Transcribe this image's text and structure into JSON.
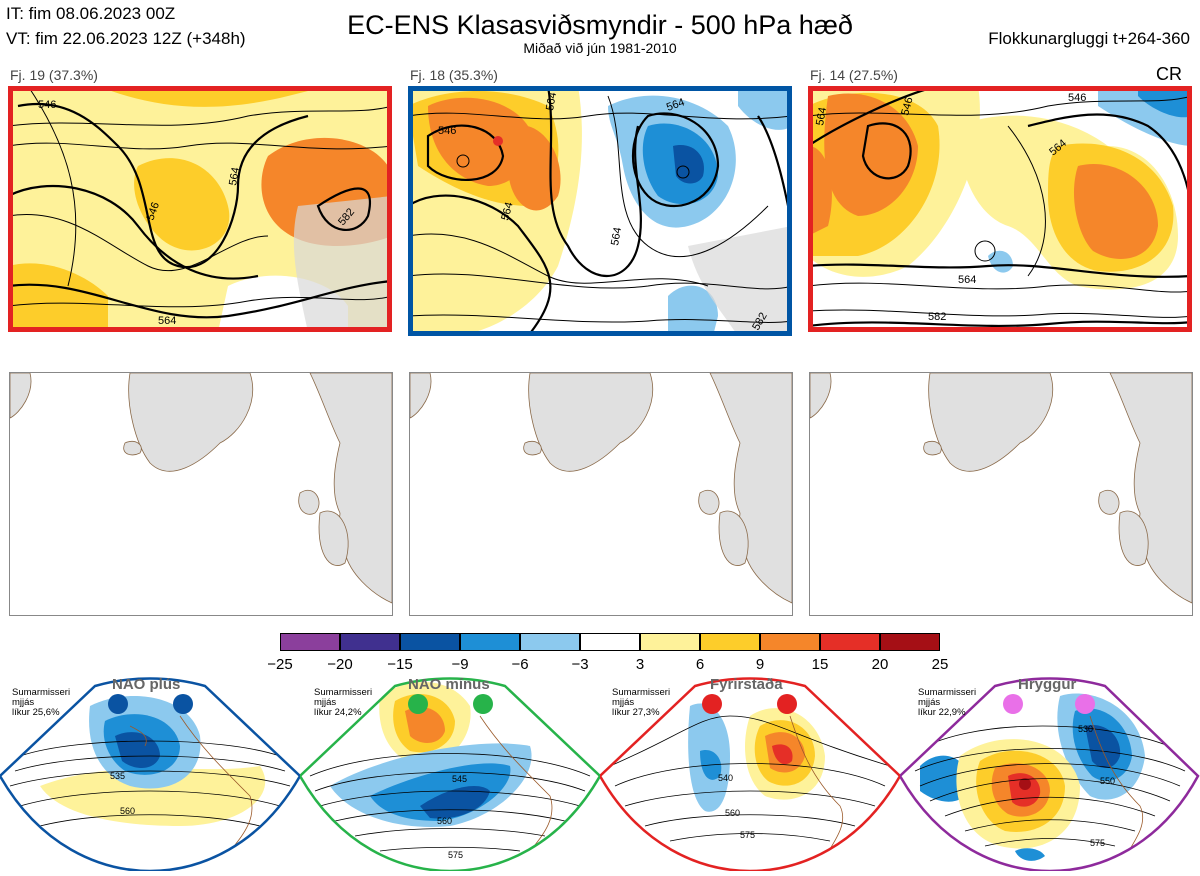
{
  "header": {
    "it": "IT: fim 08.06.2023 00Z",
    "vt": "VT: fim 22.06.2023 12Z  (+348h)",
    "title": "EC-ENS Klasasviðsmyndir - 500 hPa hæð",
    "subtitle": "Miðað við jún 1981-2010",
    "window": "Flokkunargluggi t+264-360",
    "cr": "CR"
  },
  "clusters": [
    {
      "label": "Fj. 19 (37.3%)",
      "frame_color": "#e32222",
      "contours": [
        "546",
        "546",
        "564",
        "564",
        "582"
      ]
    },
    {
      "label": "Fj. 18 (35.3%)",
      "frame_color": "#0055a4",
      "contours": [
        "546",
        "564",
        "564",
        "564",
        "564",
        "582"
      ]
    },
    {
      "label": "Fj. 14 (27.5%)",
      "frame_color": "#e32222",
      "contours": [
        "546",
        "546",
        "564",
        "564",
        "564",
        "582"
      ]
    }
  ],
  "colorbar": {
    "ticks": [
      "−25",
      "−20",
      "−15",
      "−9",
      "−6",
      "−3",
      "3",
      "6",
      "9",
      "15",
      "20",
      "25"
    ],
    "colors": [
      "#8b3f9c",
      "#40308f",
      "#0a53a2",
      "#1e8fd6",
      "#8cc9ee",
      "#ffffff",
      "#fef29a",
      "#fdcd2a",
      "#f5862a",
      "#e52f27",
      "#a50f15"
    ]
  },
  "regimes": [
    {
      "name": "NAO plús",
      "season": "Sumarmisseri",
      "period": "mjjás",
      "likelihood": "líkur 25,6%",
      "dot_color": "#0a53a2",
      "frame_color": "#0a53a2",
      "contours": [
        "535",
        "560"
      ]
    },
    {
      "name": "NAO mínus",
      "season": "Sumarmisseri",
      "period": "mjjás",
      "likelihood": "líkur 24,2%",
      "dot_color": "#27b34a",
      "frame_color": "#27b34a",
      "contours": [
        "545",
        "560",
        "575"
      ]
    },
    {
      "name": "Fyrirstaða",
      "season": "Sumarmisseri",
      "period": "mjjás",
      "likelihood": "líkur 27,3%",
      "dot_color": "#e32222",
      "frame_color": "#e32222",
      "contours": [
        "540",
        "560",
        "575"
      ]
    },
    {
      "name": "Hryggur",
      "season": "Sumarmisseri",
      "period": "mjjás",
      "likelihood": "líkur 22,9%",
      "dot_color": "#e970e8",
      "frame_color": "#8e2a9c",
      "contours": [
        "530",
        "550",
        "575"
      ]
    }
  ]
}
